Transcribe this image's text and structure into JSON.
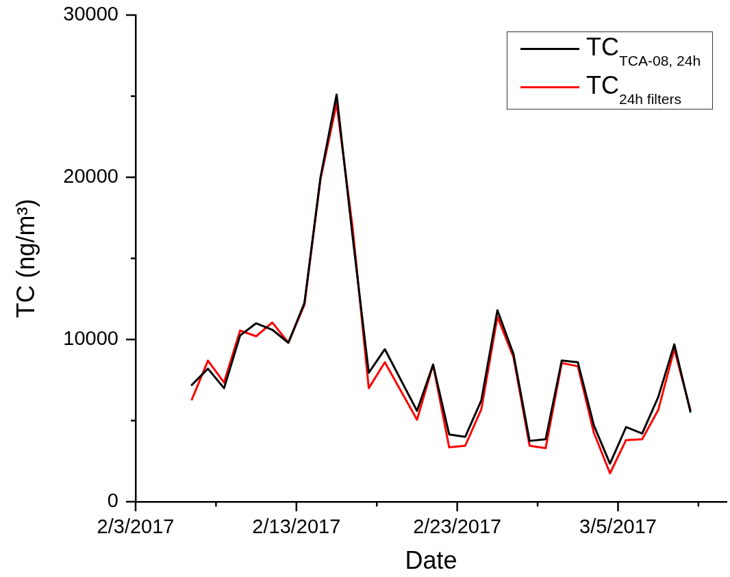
{
  "chart_data": {
    "type": "line",
    "xlabel": "Date",
    "ylabel": "TC (ng/m³)",
    "x": [
      "2017-02-06T12:00",
      "2017-02-07T12:00",
      "2017-02-08T12:00",
      "2017-02-09T12:00",
      "2017-02-10T12:00",
      "2017-02-11T12:00",
      "2017-02-12T12:00",
      "2017-02-13T12:00",
      "2017-02-14T12:00",
      "2017-02-15T12:00",
      "2017-02-16T12:00",
      "2017-02-17T12:00",
      "2017-02-18T12:00",
      "2017-02-20T12:00",
      "2017-02-21T12:00",
      "2017-02-22T12:00",
      "2017-02-23T12:00",
      "2017-02-24T12:00",
      "2017-02-25T12:00",
      "2017-02-26T12:00",
      "2017-02-27T12:00",
      "2017-02-28T12:00",
      "2017-03-01T12:00",
      "2017-03-02T12:00",
      "2017-03-03T12:00",
      "2017-03-04T12:00",
      "2017-03-05T12:00",
      "2017-03-06T12:00",
      "2017-03-07T12:00",
      "2017-03-08T12:00",
      "2017-03-09T12:00"
    ],
    "series": [
      {
        "name": "TC$_{TCA-08, 24h}$",
        "color": "#000000",
        "values": [
          7200,
          8200,
          7000,
          10250,
          11000,
          10600,
          9800,
          12250,
          20000,
          25100,
          16300,
          7950,
          9400,
          5600,
          8450,
          4150,
          4000,
          6250,
          11800,
          9100,
          3750,
          3850,
          8700,
          8600,
          4700,
          2350,
          4600,
          4200,
          6450,
          9700,
          5550
        ]
      },
      {
        "name": "TC$_{24h filters}$",
        "color": "#ff0000",
        "values": [
          6300,
          8700,
          7350,
          10550,
          10200,
          11050,
          9800,
          12150,
          19900,
          24550,
          16850,
          7000,
          8600,
          5050,
          8450,
          3350,
          3450,
          5700,
          11400,
          8900,
          3450,
          3300,
          8550,
          8350,
          4250,
          1750,
          3800,
          3850,
          5650,
          9400,
          5650
        ]
      }
    ],
    "xlim": [
      "2017-02-03",
      "2017-03-11T18:00"
    ],
    "xticks": [
      {
        "value": "2017-02-03",
        "label": "2/3/2017"
      },
      {
        "value": "2017-02-08",
        "label": null
      },
      {
        "value": "2017-02-13",
        "label": "2/13/2017"
      },
      {
        "value": "2017-02-18",
        "label": null
      },
      {
        "value": "2017-02-23",
        "label": "2/23/2017"
      },
      {
        "value": "2017-02-28",
        "label": null
      },
      {
        "value": "2017-03-05",
        "label": "3/5/2017"
      },
      {
        "value": "2017-03-10",
        "label": null
      }
    ],
    "ylim": [
      0,
      30000
    ],
    "yticks": [
      0,
      {
        "value": 5000,
        "label": null
      },
      10000,
      {
        "value": 15000,
        "label": null
      },
      20000,
      {
        "value": 25000,
        "label": null
      },
      30000
    ],
    "legend": "top right",
    "marker": "none",
    "line_style": "solid"
  }
}
